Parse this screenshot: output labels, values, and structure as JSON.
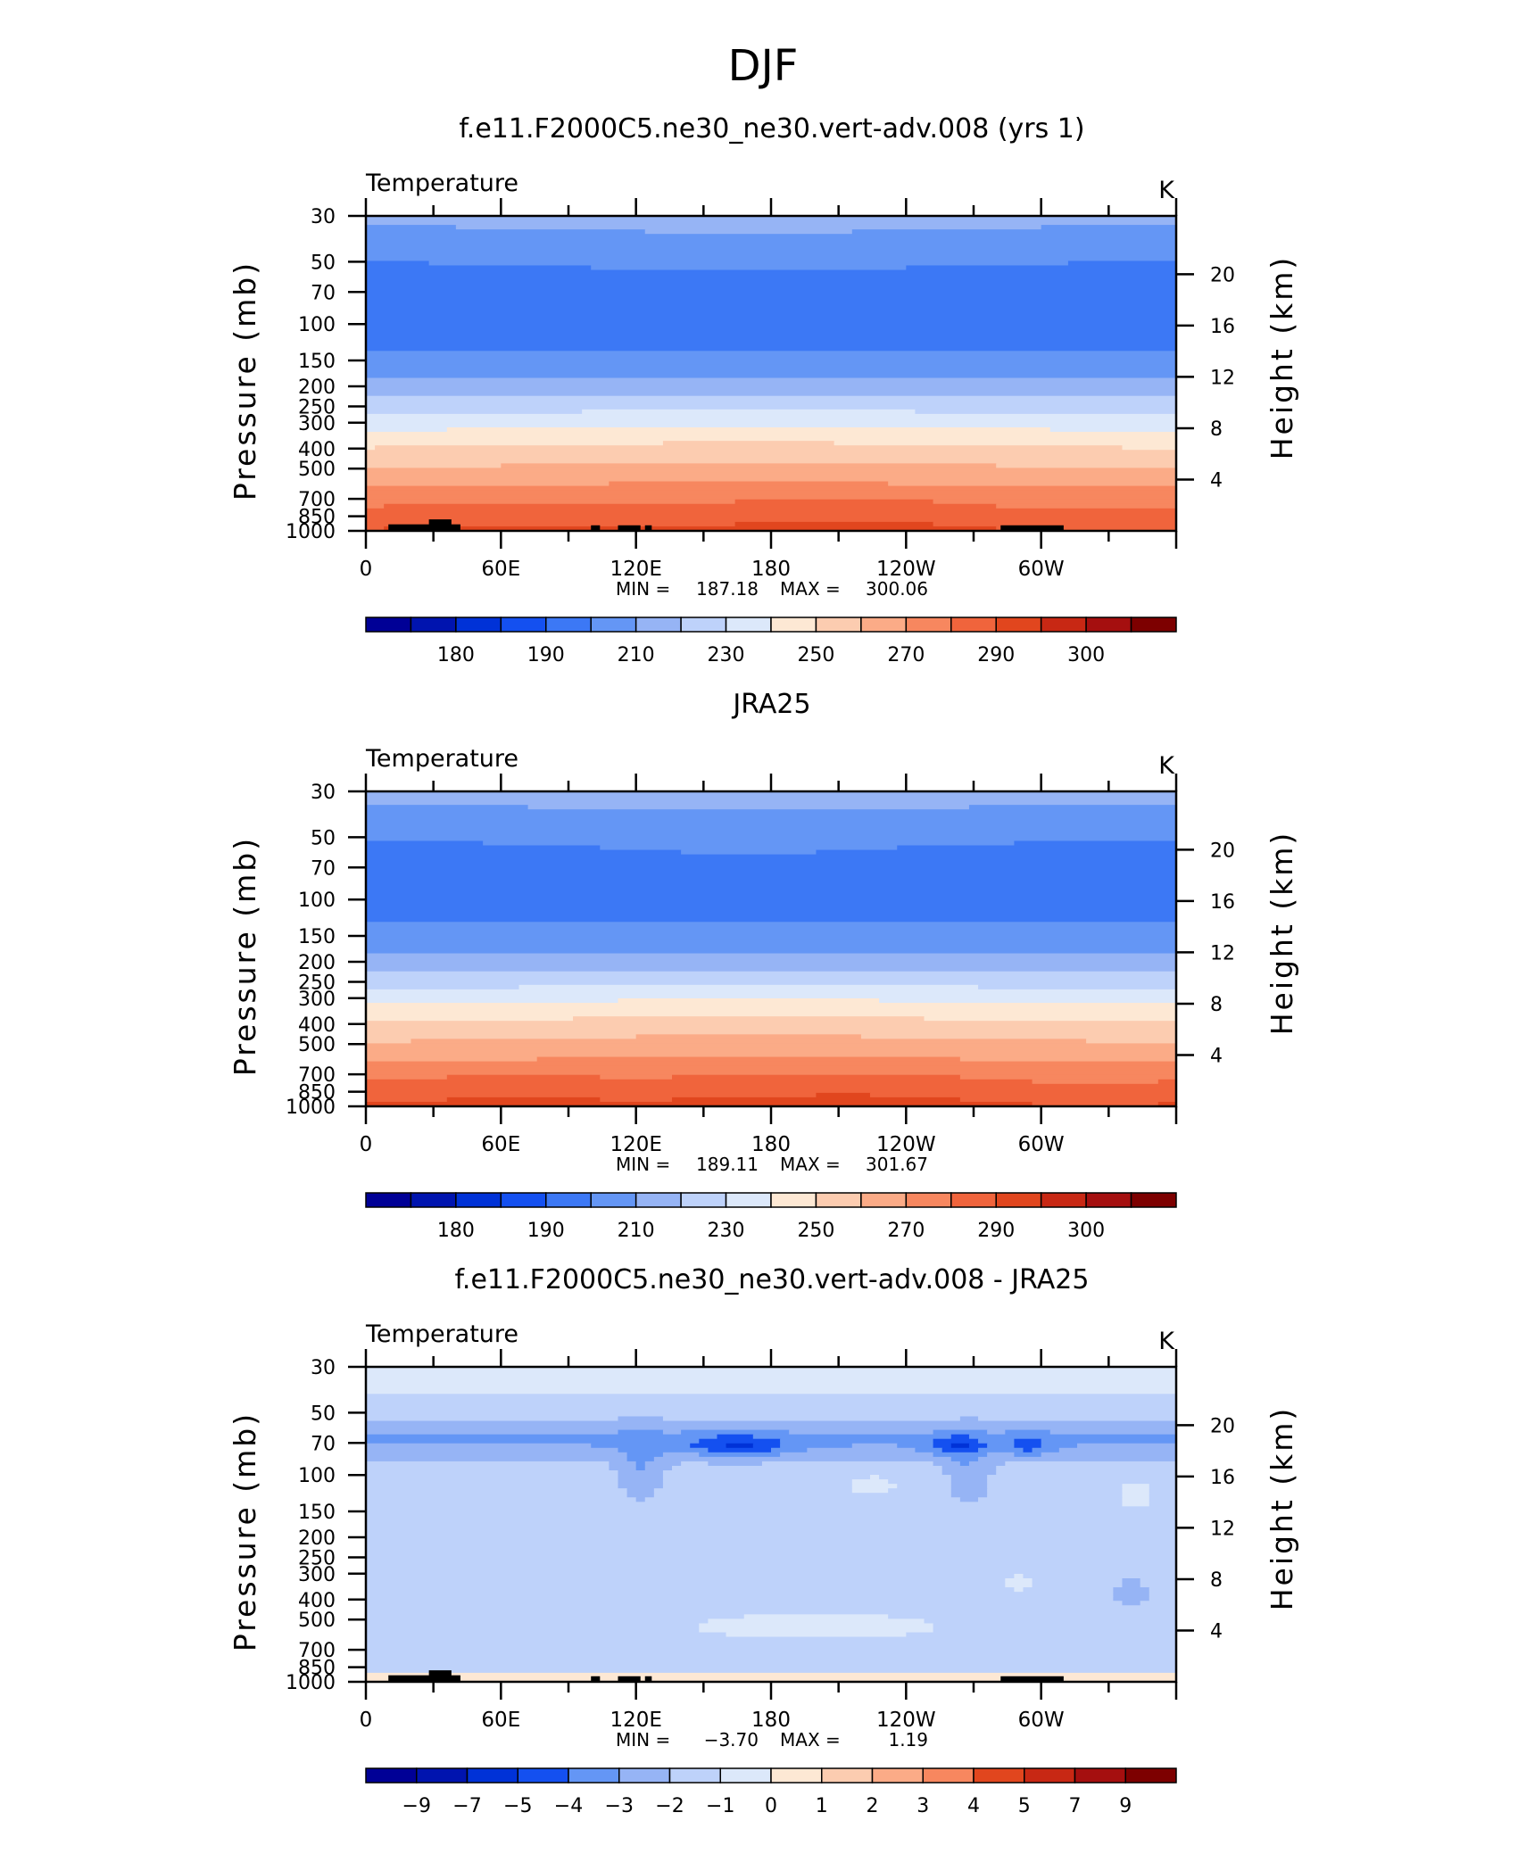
{
  "page": {
    "title": "DJF"
  },
  "colors": {
    "abs": [
      "#000096",
      "#0014af",
      "#0032d7",
      "#1450f0",
      "#3c78f5",
      "#6496f5",
      "#96b4f5",
      "#bed2fa",
      "#dce8fa",
      "#fde8d4",
      "#fcccb0",
      "#fbab87",
      "#f7875f",
      "#f0643c",
      "#e1461e",
      "#c82814",
      "#a50f0f",
      "#7d0000"
    ],
    "diff": [
      "#000096",
      "#0014af",
      "#0032d7",
      "#1450f0",
      "#3c78f5",
      "#6496f5",
      "#96b4f5",
      "#bed2fa",
      "#dce8fa",
      "#fde8d4",
      "#fcccb0",
      "#fbab87",
      "#f7875f",
      "#f0643c",
      "#e1461e",
      "#c82814",
      "#a50f0f",
      "#7d0000"
    ],
    "topography": "#000000"
  },
  "chart_data": [
    {
      "type": "heatmap",
      "title": "f.e11.F2000C5.ne30_ne30.vert-adv.008 (yrs 1)",
      "subtitle_left": "Temperature",
      "subtitle_right": "K",
      "ylabel": "Pressure (mb)",
      "ylabel_right": "Height (km)",
      "x_ticks": [
        "0",
        "60E",
        "120E",
        "180",
        "120W",
        "60W"
      ],
      "x_tick_lons": [
        0,
        60,
        120,
        180,
        240,
        300
      ],
      "xlim": [
        0,
        360
      ],
      "y_ticks": [
        "30",
        "50",
        "70",
        "100",
        "150",
        "200",
        "250",
        "300",
        "400",
        "500",
        "700",
        "850",
        "1000"
      ],
      "y_tick_values": [
        30,
        50,
        70,
        100,
        150,
        200,
        250,
        300,
        400,
        500,
        700,
        850,
        1000
      ],
      "ylim": [
        1000,
        30
      ],
      "y_scale": "log",
      "right_ticks": [
        "20",
        "16",
        "12",
        "8",
        "4"
      ],
      "right_tick_km": [
        20,
        16,
        12,
        8,
        4
      ],
      "min_label": "MIN =",
      "min_value": "187.18",
      "max_label": "MAX =",
      "max_value": "300.06",
      "colorbar": {
        "levels": [
          175,
          180,
          185,
          190,
          200,
          210,
          220,
          230,
          240,
          250,
          260,
          270,
          280,
          290,
          295,
          300,
          305
        ],
        "labels": [
          "180",
          "190",
          "210",
          "230",
          "250",
          "270",
          "290",
          "300"
        ]
      }
    },
    {
      "type": "heatmap",
      "title": "JRA25",
      "subtitle_left": "Temperature",
      "subtitle_right": "K",
      "ylabel": "Pressure (mb)",
      "ylabel_right": "Height (km)",
      "x_ticks": [
        "0",
        "60E",
        "120E",
        "180",
        "120W",
        "60W"
      ],
      "x_tick_lons": [
        0,
        60,
        120,
        180,
        240,
        300
      ],
      "xlim": [
        0,
        360
      ],
      "y_ticks": [
        "30",
        "50",
        "70",
        "100",
        "150",
        "200",
        "250",
        "300",
        "400",
        "500",
        "700",
        "850",
        "1000"
      ],
      "y_tick_values": [
        30,
        50,
        70,
        100,
        150,
        200,
        250,
        300,
        400,
        500,
        700,
        850,
        1000
      ],
      "ylim": [
        1000,
        30
      ],
      "y_scale": "log",
      "right_ticks": [
        "20",
        "16",
        "12",
        "8",
        "4"
      ],
      "right_tick_km": [
        20,
        16,
        12,
        8,
        4
      ],
      "min_label": "MIN =",
      "min_value": "189.11",
      "max_label": "MAX =",
      "max_value": "301.67",
      "colorbar": {
        "levels": [
          175,
          180,
          185,
          190,
          200,
          210,
          220,
          230,
          240,
          250,
          260,
          270,
          280,
          290,
          295,
          300,
          305
        ],
        "labels": [
          "180",
          "190",
          "210",
          "230",
          "250",
          "270",
          "290",
          "300"
        ]
      }
    },
    {
      "type": "heatmap",
      "title": "f.e11.F2000C5.ne30_ne30.vert-adv.008 - JRA25",
      "subtitle_left": "Temperature",
      "subtitle_right": "K",
      "ylabel": "Pressure (mb)",
      "ylabel_right": "Height (km)",
      "x_ticks": [
        "0",
        "60E",
        "120E",
        "180",
        "120W",
        "60W"
      ],
      "x_tick_lons": [
        0,
        60,
        120,
        180,
        240,
        300
      ],
      "xlim": [
        0,
        360
      ],
      "y_ticks": [
        "30",
        "50",
        "70",
        "100",
        "150",
        "200",
        "250",
        "300",
        "400",
        "500",
        "700",
        "850",
        "1000"
      ],
      "y_tick_values": [
        30,
        50,
        70,
        100,
        150,
        200,
        250,
        300,
        400,
        500,
        700,
        850,
        1000
      ],
      "ylim": [
        1000,
        30
      ],
      "y_scale": "log",
      "right_ticks": [
        "20",
        "16",
        "12",
        "8",
        "4"
      ],
      "right_tick_km": [
        20,
        16,
        12,
        8,
        4
      ],
      "min_label": "MIN =",
      "min_value": "−3.70",
      "max_label": "MAX =",
      "max_value": "1.19",
      "colorbar": {
        "levels": [
          -9,
          -7,
          -5,
          -4,
          -3,
          -2,
          -1,
          0,
          1,
          2,
          3,
          4,
          5,
          7,
          9
        ],
        "labels": [
          "−9",
          "−7",
          "−5",
          "−4",
          "−3",
          "−2",
          "−1",
          "0",
          "1",
          "2",
          "3",
          "4",
          "5",
          "7",
          "9"
        ]
      }
    }
  ]
}
